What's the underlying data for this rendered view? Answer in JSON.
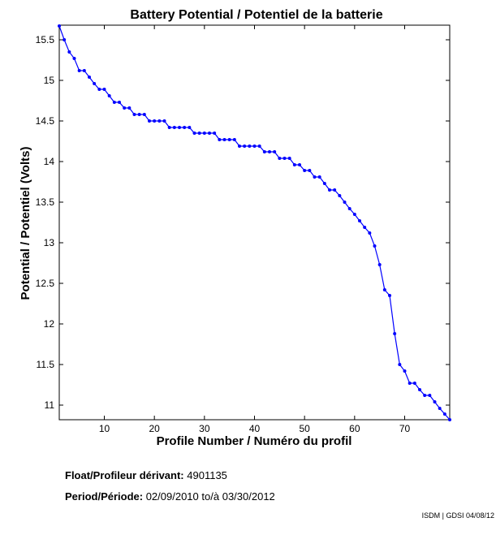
{
  "chart_data": {
    "type": "line",
    "title": "Battery Potential / Potentiel de la batterie",
    "xlabel": "Profile Number / Numéro du profil",
    "ylabel": "Potential / Potentiel (Volts)",
    "xlim": [
      1,
      79
    ],
    "ylim": [
      10.82,
      15.68
    ],
    "x_ticks": [
      10,
      20,
      30,
      40,
      50,
      60,
      70
    ],
    "y_ticks": [
      11,
      11.5,
      12,
      12.5,
      13,
      13.5,
      14,
      14.5,
      15,
      15.5
    ],
    "grid": false,
    "series": [
      {
        "color": "#0000ff",
        "x": [
          1,
          2,
          3,
          4,
          5,
          6,
          7,
          8,
          9,
          10,
          11,
          12,
          13,
          14,
          15,
          16,
          17,
          18,
          19,
          20,
          21,
          22,
          23,
          24,
          25,
          26,
          27,
          28,
          29,
          30,
          31,
          32,
          33,
          34,
          35,
          36,
          37,
          38,
          39,
          40,
          41,
          42,
          43,
          44,
          45,
          46,
          47,
          48,
          49,
          50,
          51,
          52,
          53,
          54,
          55,
          56,
          57,
          58,
          59,
          60,
          61,
          62,
          63,
          64,
          65,
          66,
          67,
          68,
          69,
          70,
          71,
          72,
          73,
          74,
          75,
          76,
          77,
          78,
          79
        ],
        "values": [
          15.67,
          15.5,
          15.35,
          15.27,
          15.12,
          15.12,
          15.04,
          14.96,
          14.89,
          14.89,
          14.81,
          14.73,
          14.73,
          14.66,
          14.66,
          14.58,
          14.58,
          14.58,
          14.5,
          14.5,
          14.5,
          14.5,
          14.42,
          14.42,
          14.42,
          14.42,
          14.42,
          14.35,
          14.35,
          14.35,
          14.35,
          14.35,
          14.27,
          14.27,
          14.27,
          14.27,
          14.19,
          14.19,
          14.19,
          14.19,
          14.19,
          14.12,
          14.12,
          14.12,
          14.04,
          14.04,
          14.04,
          13.96,
          13.96,
          13.89,
          13.89,
          13.81,
          13.81,
          13.73,
          13.65,
          13.65,
          13.58,
          13.5,
          13.42,
          13.35,
          13.27,
          13.19,
          13.12,
          12.96,
          12.73,
          12.42,
          12.35,
          11.88,
          11.5,
          11.42,
          11.27,
          11.27,
          11.19,
          11.12,
          11.12,
          11.04,
          10.96,
          10.89,
          10.82
        ]
      }
    ]
  },
  "info": {
    "float_label": "Float/Profileur dérivant:",
    "float_value": "4901135",
    "period_label": "Period/Période:",
    "period_start": "02/09/2010",
    "period_sep": "to/à",
    "period_end": "03/30/2012",
    "credit": "ISDM | GDSI 04/08/12"
  }
}
